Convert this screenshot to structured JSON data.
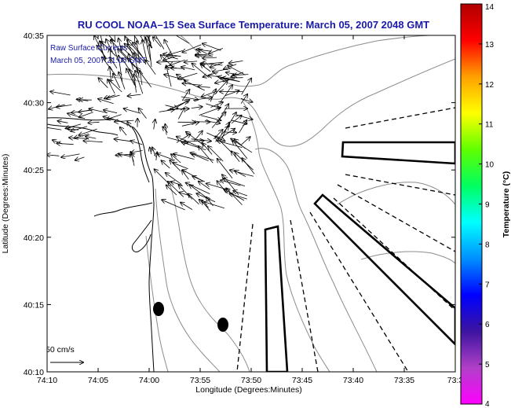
{
  "chart_data": {
    "type": "vector-field map",
    "title": "RU COOL  NOAA–15  Sea Surface Temperature:  March 05, 2007 2048 GMT",
    "xlabel": "Longitude (Degrees:Minutes)",
    "ylabel": "Latitude (Degrees:Minutes)",
    "x_ticks": [
      "74:10",
      "74:05",
      "74:00",
      "73:55",
      "73:50",
      "73:45",
      "73:40",
      "73:35",
      "73:3"
    ],
    "y_ticks": [
      "40:10",
      "40:15",
      "40:20",
      "40:25",
      "40:30",
      "40:35"
    ],
    "xlim_minutes_west": [
      70,
      30
    ],
    "ylim_minutes_north": [
      10,
      35
    ],
    "legend_line1": "Raw Surface Currents",
    "legend_line2": "March 05, 2007 21:00 GMT",
    "scale_label": "50 cm/s",
    "colorbar": {
      "label": "Temperature (°C)",
      "ticks": [
        "4",
        "5",
        "6",
        "7",
        "8",
        "9",
        "10",
        "11",
        "12",
        "13",
        "14"
      ],
      "range": [
        4,
        14
      ],
      "colors": [
        "#ff00ff",
        "#b040c8",
        "#3c14a0",
        "#0000ff",
        "#0090ff",
        "#00ffff",
        "#00ff60",
        "#60ff00",
        "#ffff00",
        "#ffa000",
        "#ff0000",
        "#b00000"
      ]
    },
    "markers": [
      {
        "lon_min_w": 58.8,
        "lat_min_n": 14.7
      },
      {
        "lon_min_w": 52.3,
        "lat_min_n": 13.5
      }
    ]
  }
}
